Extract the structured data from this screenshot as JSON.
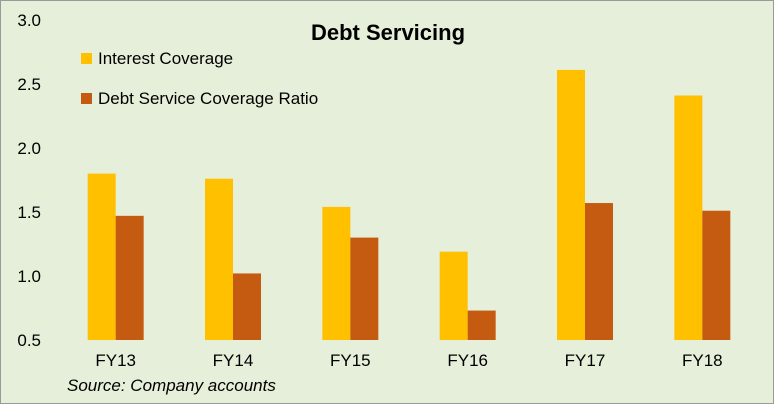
{
  "chart_data": {
    "type": "bar",
    "title": "Debt Servicing",
    "xlabel": "",
    "ylabel": "",
    "categories": [
      "FY13",
      "FY14",
      "FY15",
      "FY16",
      "FY17",
      "FY18"
    ],
    "series": [
      {
        "name": "Interest Coverage",
        "color": "#ffc000",
        "values": [
          1.8,
          1.76,
          1.54,
          1.19,
          2.61,
          2.41
        ]
      },
      {
        "name": "Debt Service Coverage Ratio",
        "color": "#c55a11",
        "values": [
          1.47,
          1.02,
          1.3,
          0.73,
          1.57,
          1.51
        ]
      }
    ],
    "ylim": [
      0.5,
      3.0
    ],
    "yticks": [
      "0.5",
      "1.0",
      "1.5",
      "2.0",
      "2.5",
      "3.0"
    ],
    "grid": false,
    "legend_position": "top-left"
  },
  "source_note": "Source: Company accounts"
}
